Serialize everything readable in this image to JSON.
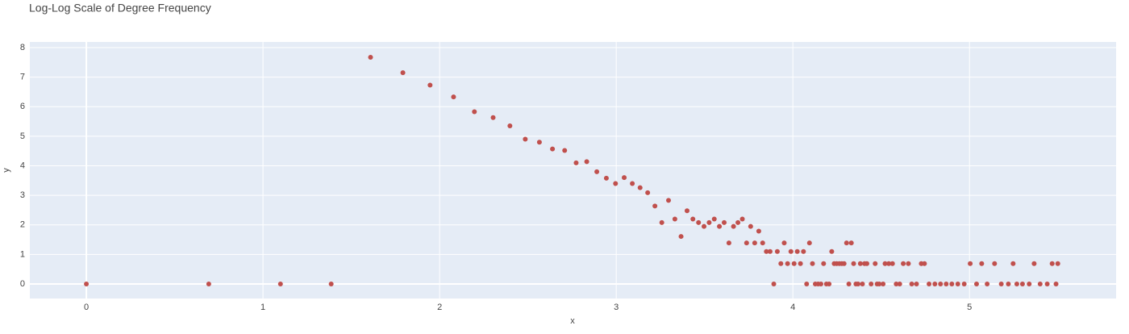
{
  "chart_data": {
    "type": "scatter",
    "title": "Log-Log Scale of Degree Frequency",
    "x_label": "x",
    "y_label": "y",
    "color": "#c0504d",
    "grid": true,
    "xlim": [
      -0.32,
      5.83
    ],
    "ylim": [
      -0.49,
      8.19
    ],
    "xticks": [
      0,
      1,
      2,
      3,
      4,
      5
    ],
    "yticks": [
      0,
      1,
      2,
      3,
      4,
      5,
      6,
      7,
      8
    ],
    "x": [
      0,
      0.693,
      1.099,
      1.386,
      1.609,
      1.792,
      1.946,
      2.079,
      2.197,
      2.303,
      2.398,
      2.485,
      2.565,
      2.639,
      2.708,
      2.773,
      2.833,
      2.89,
      2.944,
      2.996,
      3.045,
      3.091,
      3.135,
      3.178,
      3.219,
      3.258,
      3.296,
      3.332,
      3.367,
      3.401,
      3.434,
      3.466,
      3.497,
      3.526,
      3.555,
      3.584,
      3.611,
      3.638,
      3.664,
      3.689,
      3.714,
      3.738,
      3.761,
      3.784,
      3.807,
      3.829,
      3.85,
      3.871,
      3.892,
      3.912,
      3.932,
      3.951,
      3.97,
      3.989,
      4.007,
      4.025,
      4.043,
      4.06,
      4.078,
      4.094,
      4.111,
      4.127,
      4.143,
      4.159,
      4.174,
      4.19,
      4.205,
      4.22,
      4.234,
      4.248,
      4.263,
      4.277,
      4.29,
      4.304,
      4.317,
      4.331,
      4.344,
      4.357,
      4.369,
      4.382,
      4.394,
      4.406,
      4.419,
      4.443,
      4.466,
      4.477,
      4.489,
      4.511,
      4.522,
      4.543,
      4.564,
      4.585,
      4.605,
      4.625,
      4.654,
      4.673,
      4.7,
      4.727,
      4.745,
      4.771,
      4.804,
      4.836,
      4.868,
      4.9,
      4.934,
      4.97,
      5.004,
      5.04,
      5.069,
      5.1,
      5.142,
      5.18,
      5.22,
      5.247,
      5.268,
      5.3,
      5.338,
      5.366,
      5.4,
      5.44,
      5.468,
      5.49,
      5.5
    ],
    "values": [
      0,
      0,
      0,
      0,
      7.67,
      7.15,
      6.73,
      6.33,
      5.83,
      5.63,
      5.35,
      4.9,
      4.8,
      4.57,
      4.52,
      4.1,
      4.14,
      3.8,
      3.58,
      3.4,
      3.6,
      3.4,
      3.26,
      3.09,
      2.64,
      2.08,
      2.83,
      2.2,
      1.61,
      2.48,
      2.2,
      2.08,
      1.95,
      2.08,
      2.2,
      1.95,
      2.08,
      1.39,
      1.95,
      2.08,
      2.2,
      1.39,
      1.95,
      1.39,
      1.79,
      1.39,
      1.1,
      1.1,
      0,
      1.1,
      0.69,
      1.39,
      0.69,
      1.1,
      0.69,
      1.1,
      0.69,
      1.1,
      0,
      1.39,
      0.69,
      0,
      0,
      0,
      0.69,
      0,
      0,
      1.1,
      0.69,
      0.69,
      0.69,
      0.69,
      0.69,
      1.39,
      0,
      1.39,
      0.69,
      0,
      0,
      0.69,
      0,
      0.69,
      0.69,
      0,
      0.69,
      0,
      0,
      0,
      0.69,
      0.69,
      0.69,
      0,
      0,
      0.69,
      0.69,
      0,
      0,
      0.69,
      0.69,
      0,
      0,
      0,
      0,
      0,
      0,
      0,
      0.69,
      0,
      0.69,
      0,
      0.69,
      0,
      0,
      0.69,
      0,
      0,
      0,
      0.69,
      0,
      0,
      0.69,
      0,
      0.69
    ]
  }
}
